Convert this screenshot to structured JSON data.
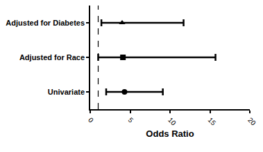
{
  "chart_data": {
    "type": "scatter",
    "orientation": "horizontal",
    "x_label": "Odds Ratio",
    "categories": [
      "Univariate",
      "Adjusted for Race",
      "Adjusted for Diabetes"
    ],
    "color": "#000000",
    "series": [
      {
        "marker": "circle",
        "values": [
          4.3,
          null,
          null
        ],
        "lower": [
          2.0,
          null,
          null
        ],
        "upper": [
          9.1,
          null,
          null
        ]
      },
      {
        "marker": "square",
        "values": [
          null,
          4.1,
          null
        ],
        "lower": [
          null,
          1.0,
          null
        ],
        "upper": [
          null,
          15.7,
          null
        ]
      },
      {
        "marker": "triangle-up",
        "values": [
          null,
          null,
          4.0
        ],
        "lower": [
          null,
          null,
          1.4
        ],
        "upper": [
          null,
          null,
          11.7
        ]
      }
    ],
    "xlim": [
      0,
      20
    ],
    "xticks": [
      0,
      5,
      10,
      15,
      20
    ],
    "reference_line": {
      "value": 1,
      "line_style": "dashed"
    },
    "grid": false
  }
}
